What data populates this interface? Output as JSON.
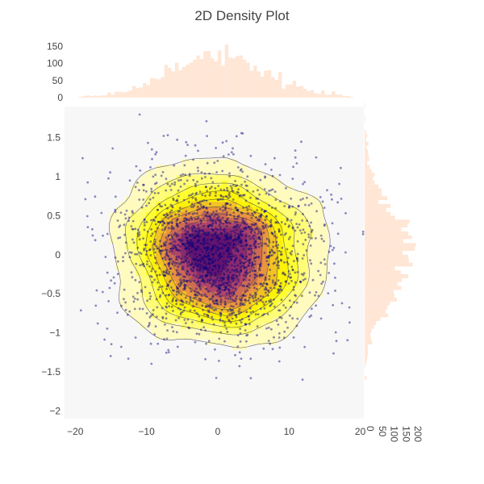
{
  "chart_data": {
    "type": "scatter",
    "title": "2D Density Plot",
    "xlabel": "",
    "ylabel": "",
    "xlim": [
      -21.5,
      20.5
    ],
    "ylim": [
      -2.1,
      1.9
    ],
    "x_ticks": [
      -20,
      -10,
      0,
      10,
      20
    ],
    "x_tick_labels": [
      "−20",
      "−10",
      "0",
      "10",
      "20"
    ],
    "y_ticks": [
      -2,
      -1.5,
      -1,
      -0.5,
      0,
      0.5,
      1,
      1.5
    ],
    "y_tick_labels": [
      "−2",
      "−1.5",
      "−1",
      "−0.5",
      "0",
      "0.5",
      "1",
      "1.5"
    ],
    "grid": true,
    "legend": "none",
    "layers": [
      {
        "type": "histogram2dcontour",
        "colorscale": "Hot",
        "reversed": true,
        "contour_line_color": "#444444"
      },
      {
        "type": "scatter",
        "mode": "markers",
        "marker_color": "#00007f",
        "marker_opacity": 0.4,
        "marker_size": 3
      }
    ],
    "points": {
      "n": 2000,
      "x_center": 0,
      "x_spread": 7,
      "y_center": 0,
      "y_spread": 0.55
    },
    "density_levels": 10,
    "marginal_x_histogram": {
      "orientation": "vertical",
      "color": "#ffe6d5",
      "x_range": [
        -20,
        20
      ],
      "counts_axis_ticks": [
        0,
        50,
        100,
        150
      ],
      "counts_axis_tick_labels": [
        "0",
        "50",
        "100",
        "150"
      ],
      "counts_max": 160,
      "peak_count": 155
    },
    "marginal_y_histogram": {
      "orientation": "horizontal",
      "color": "#ffe6d5",
      "y_range": [
        -2,
        2
      ],
      "counts_axis_ticks": [
        0,
        50,
        100,
        150,
        200
      ],
      "counts_axis_tick_labels": [
        "0",
        "50",
        "100",
        "150",
        "200"
      ],
      "counts_max": 230,
      "peak_count": 215
    }
  }
}
